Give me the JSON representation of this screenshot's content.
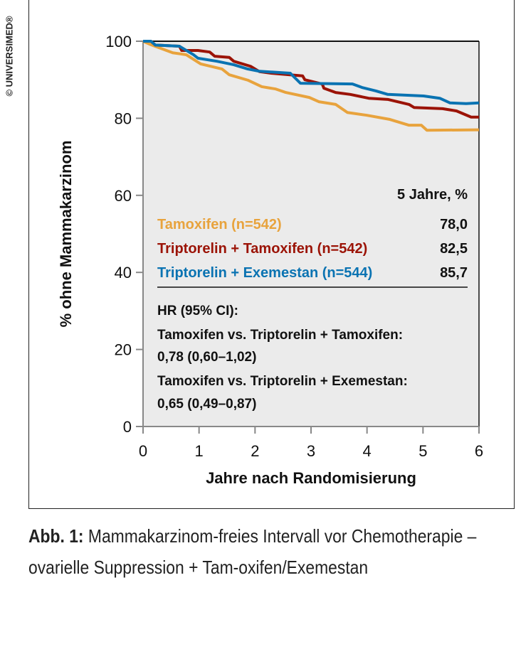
{
  "watermark": "© UNIVERSIMED®",
  "caption": {
    "label": "Abb. 1:",
    "text": " Mammakarzinom-freies Intervall vor Chemotherapie – ovarielle Suppression + Tam-oxifen/Exemestan"
  },
  "chart_data": {
    "type": "line",
    "xlabel": "Jahre nach Randomisierung",
    "ylabel": "% ohne Mammakarzinom",
    "xlim": [
      0,
      6
    ],
    "ylim": [
      0,
      100
    ],
    "xticks": [
      "0",
      "1",
      "2",
      "3",
      "4",
      "5",
      "6"
    ],
    "yticks": [
      "0",
      "20",
      "40",
      "60",
      "80",
      "100"
    ],
    "grid": false,
    "background": "#EBEBEB",
    "legend": {
      "header": "5 Jahre, %",
      "placement": "center-right"
    },
    "series": [
      {
        "name": "Tamoxifen (n=542)",
        "value5y": "78,0",
        "color": "#E8A33D",
        "x": [
          0,
          0.14,
          0.53,
          0.77,
          1.03,
          1.41,
          1.54,
          1.87,
          2.12,
          2.37,
          2.55,
          2.97,
          3.14,
          3.44,
          3.65,
          3.99,
          4.41,
          4.75,
          4.97,
          5.07,
          6
        ],
        "y": [
          100,
          99.1,
          97.0,
          96.5,
          94.1,
          92.8,
          91.3,
          89.9,
          88.2,
          87.6,
          86.7,
          85.4,
          84.3,
          83.6,
          81.5,
          80.8,
          79.7,
          78.2,
          78.2,
          76.9,
          77.0
        ]
      },
      {
        "name": "Triptorelin + Tamoxifen (n=542)",
        "value5y": "82,5",
        "color": "#9B1306",
        "x": [
          0,
          0.14,
          0.22,
          0.65,
          0.69,
          0.98,
          1.19,
          1.28,
          1.54,
          1.62,
          1.92,
          2.08,
          2.29,
          2.85,
          2.89,
          3.2,
          3.23,
          3.44,
          3.7,
          4.03,
          4.37,
          4.75,
          4.84,
          5.35,
          5.6,
          5.86,
          6
        ],
        "y": [
          100,
          100,
          99,
          98.7,
          97.6,
          97.6,
          97.2,
          96.1,
          95.8,
          94.8,
          93.5,
          92.1,
          91.7,
          91.0,
          90.0,
          88.9,
          87.8,
          86.7,
          86.2,
          85.2,
          84.9,
          83.6,
          82.8,
          82.5,
          81.9,
          80.3,
          80.3
        ]
      },
      {
        "name": "Triptorelin + Exemestan (n=544)",
        "value5y": "85,7",
        "color": "#0A73B2",
        "x": [
          0,
          0.14,
          0.22,
          0.65,
          0.9,
          0.98,
          1.32,
          1.62,
          1.87,
          2.08,
          2.63,
          2.81,
          3.74,
          3.91,
          4.16,
          4.37,
          5.01,
          5.3,
          5.48,
          5.77,
          6
        ],
        "y": [
          100,
          100,
          99,
          98.7,
          96.5,
          95.6,
          94.8,
          93.9,
          92.8,
          92.2,
          91.7,
          89.1,
          88.9,
          88.0,
          87.1,
          86.2,
          85.8,
          85.2,
          84.0,
          83.8,
          84.0
        ]
      }
    ],
    "annotations": [
      "HR (95% CI):",
      "Tamoxifen vs. Triptorelin + Tamoxifen:",
      "0,78 (0,60–1,02)",
      "Tamoxifen vs. Triptorelin + Exemestan:",
      "0,65 (0,49–0,87)"
    ]
  }
}
